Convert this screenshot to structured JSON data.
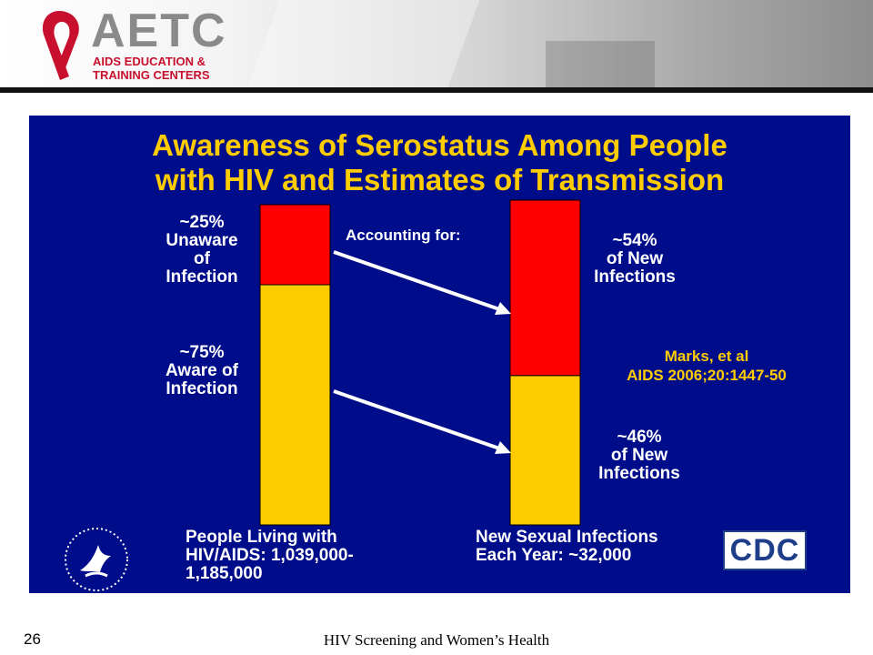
{
  "header": {
    "logo_text": "AETC",
    "logo_subtitle_1": "AIDS EDUCATION &",
    "logo_subtitle_2": "TRAINING CENTERS",
    "logo_color": "#c8102e"
  },
  "slide": {
    "background": "#000d8a",
    "title_line1": "Awareness of Serostatus Among People",
    "title_line2": "with HIV and Estimates of Transmission",
    "accounting_label": "Accounting for:",
    "citation_line1": "Marks, et al",
    "citation_line2": "AIDS 2006;20:1447-50",
    "left_category_lines": [
      "People Living with",
      "HIV/AIDS: 1,039,000-",
      "1,185,000"
    ],
    "right_category_lines": [
      "New Sexual Infections",
      "Each Year: ~32,000"
    ],
    "icons": [
      "hhs-seal-icon",
      "cdc-logo"
    ],
    "cdc_text": "CDC"
  },
  "chart_data": {
    "type": "bar",
    "stacked": true,
    "categories": [
      "People Living with HIV/AIDS: 1,039,000-1,185,000",
      "New Sexual Infections Each Year: ~32,000"
    ],
    "series": [
      {
        "name": "Aware of Infection",
        "color": "#ffcc00",
        "values": [
          75,
          46
        ],
        "labels": [
          [
            "~75%",
            "Aware of",
            "Infection"
          ],
          [
            "~46%",
            "of New",
            "Infections"
          ]
        ]
      },
      {
        "name": "Unaware of Infection",
        "color": "#ff0000",
        "values": [
          25,
          54
        ],
        "labels": [
          [
            "~25%",
            "Unaware",
            "of",
            "Infection"
          ],
          [
            "~54%",
            "of New",
            "Infections"
          ]
        ]
      }
    ],
    "ylim": [
      0,
      100
    ],
    "grid": false,
    "legend": "none"
  },
  "footer": {
    "page_number": "26",
    "title": "HIV Screening and Women’s Health"
  }
}
